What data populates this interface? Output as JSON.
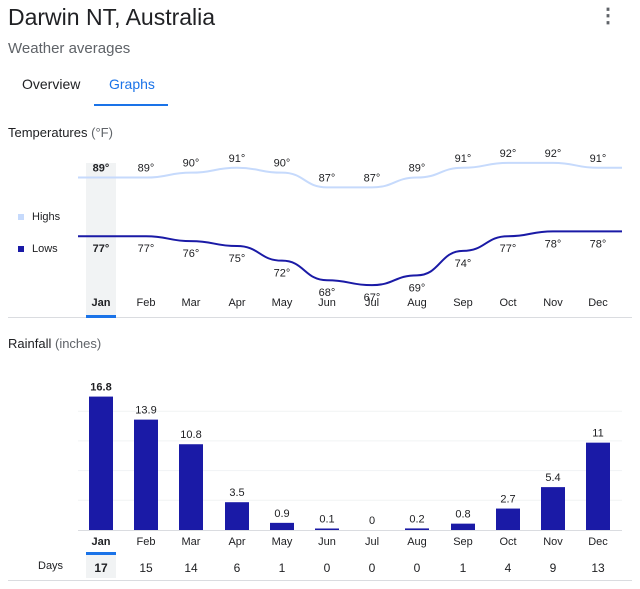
{
  "header": {
    "title": "Darwin NT, Australia",
    "subtitle": "Weather averages",
    "more_icon": "more-vert-icon"
  },
  "tabs": [
    {
      "label": "Overview",
      "active": false
    },
    {
      "label": "Graphs",
      "active": true
    }
  ],
  "temperature": {
    "label": "Temperatures",
    "unit": "(°F)",
    "legend": {
      "highs": "Highs",
      "lows": "Lows"
    },
    "colors": {
      "highs": "#c6dafc",
      "lows": "#1a1aa6",
      "selected_bg": "#f1f3f4",
      "accent": "#1a73e8"
    }
  },
  "rainfall": {
    "label": "Rainfall",
    "unit": "(inches)",
    "days_label": "Days",
    "bar_color": "#1a1aa6"
  },
  "selected_month": "Jan",
  "chart_data": [
    {
      "type": "line",
      "x": [
        "Jan",
        "Feb",
        "Mar",
        "Apr",
        "May",
        "Jun",
        "Jul",
        "Aug",
        "Sep",
        "Oct",
        "Nov",
        "Dec"
      ],
      "series": [
        {
          "name": "Highs",
          "values": [
            89,
            89,
            90,
            91,
            90,
            87,
            87,
            89,
            91,
            92,
            92,
            91
          ],
          "labels": [
            "89°",
            "89°",
            "90°",
            "91°",
            "90°",
            "87°",
            "87°",
            "89°",
            "91°",
            "92°",
            "92°",
            "91°"
          ]
        },
        {
          "name": "Lows",
          "values": [
            77,
            77,
            76,
            75,
            72,
            68,
            67,
            69,
            74,
            77,
            78,
            78
          ],
          "labels": [
            "77°",
            "77°",
            "76°",
            "75°",
            "72°",
            "68°",
            "67°",
            "69°",
            "74°",
            "77°",
            "78°",
            "78°"
          ]
        }
      ],
      "ylim": [
        66,
        93
      ]
    },
    {
      "type": "bar",
      "categories": [
        "Jan",
        "Feb",
        "Mar",
        "Apr",
        "May",
        "Jun",
        "Jul",
        "Aug",
        "Sep",
        "Oct",
        "Nov",
        "Dec"
      ],
      "values": [
        16.8,
        13.9,
        10.8,
        3.5,
        0.9,
        0.1,
        0,
        0.2,
        0.8,
        2.7,
        5.4,
        11
      ],
      "labels": [
        "16.8",
        "13.9",
        "10.8",
        "3.5",
        "0.9",
        "0.1",
        "0",
        "0.2",
        "0.8",
        "2.7",
        "5.4",
        "11"
      ],
      "days": [
        "17",
        "15",
        "14",
        "6",
        "1",
        "0",
        "0",
        "0",
        "1",
        "4",
        "9",
        "13"
      ],
      "ylim": [
        0,
        17
      ]
    }
  ]
}
